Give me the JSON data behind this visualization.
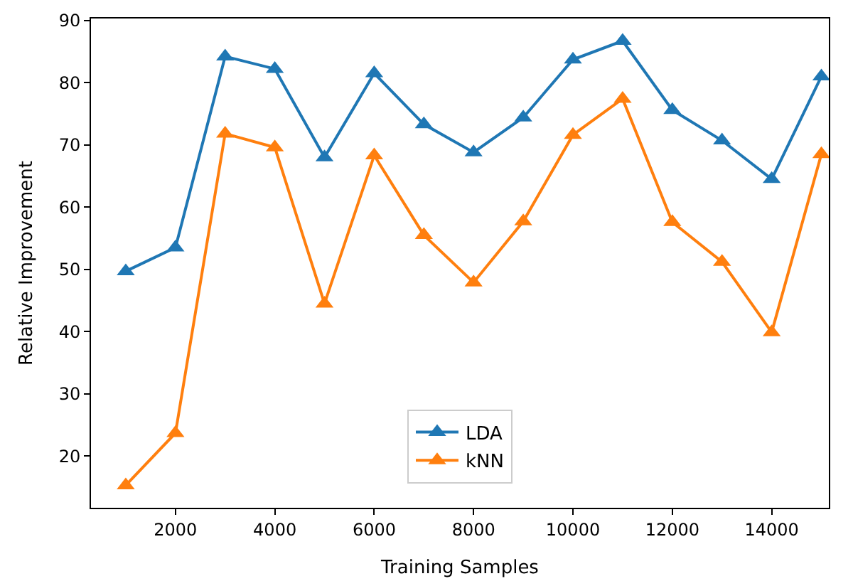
{
  "chart_data": {
    "type": "line",
    "xlabel": "Training Samples",
    "ylabel": "Relative Improvement",
    "x": [
      1000,
      2000,
      3000,
      4000,
      5000,
      6000,
      7000,
      8000,
      9000,
      10000,
      11000,
      12000,
      13000,
      14000,
      15000
    ],
    "series": [
      {
        "name": "LDA",
        "color": "#1f77b4",
        "values": [
          49.7,
          53.5,
          84.2,
          82.2,
          68.0,
          81.5,
          73.3,
          68.8,
          74.4,
          83.7,
          86.7,
          75.6,
          70.7,
          64.5,
          81.0
        ]
      },
      {
        "name": "kNN",
        "color": "#ff7f0e",
        "values": [
          15.3,
          23.7,
          71.8,
          69.6,
          44.5,
          68.3,
          55.5,
          47.9,
          57.7,
          71.6,
          77.4,
          57.6,
          51.2,
          39.9,
          68.5
        ]
      }
    ],
    "xlim": [
      300,
      15150
    ],
    "ylim": [
      11.7,
      90.3
    ],
    "xticks": [
      2000,
      4000,
      6000,
      8000,
      10000,
      12000,
      14000
    ],
    "yticks": [
      20,
      30,
      40,
      50,
      60,
      70,
      80,
      90
    ],
    "marker": "triangle",
    "line_style": "solid",
    "legend": "bottom"
  }
}
